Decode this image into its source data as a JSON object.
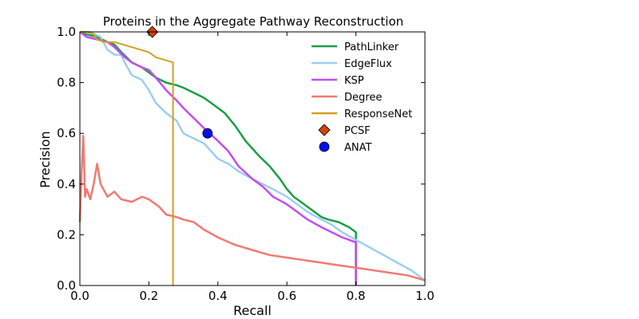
{
  "chart_data": {
    "type": "line",
    "title": "Proteins in the Aggregate Pathway Reconstruction",
    "xlabel": "Recall",
    "ylabel": "Precision",
    "xlim": [
      0.0,
      1.0
    ],
    "ylim": [
      0.0,
      1.0
    ],
    "xticks": [
      "0.0",
      "0.2",
      "0.4",
      "0.6",
      "0.8",
      "1.0"
    ],
    "yticks": [
      "0.0",
      "0.2",
      "0.4",
      "0.6",
      "0.8",
      "1.0"
    ],
    "grid": false,
    "legend_position": "top-right",
    "series": [
      {
        "name": "PathLinker",
        "color": "#1a9e45",
        "marker": "line",
        "x": [
          0.0,
          0.02,
          0.05,
          0.08,
          0.1,
          0.12,
          0.15,
          0.18,
          0.2,
          0.22,
          0.25,
          0.28,
          0.3,
          0.33,
          0.36,
          0.38,
          0.4,
          0.42,
          0.45,
          0.48,
          0.5,
          0.52,
          0.55,
          0.58,
          0.6,
          0.62,
          0.65,
          0.68,
          0.7,
          0.72,
          0.75,
          0.78,
          0.8,
          0.8
        ],
        "y": [
          1.0,
          0.99,
          0.98,
          0.96,
          0.95,
          0.92,
          0.88,
          0.86,
          0.84,
          0.82,
          0.8,
          0.79,
          0.78,
          0.76,
          0.74,
          0.72,
          0.7,
          0.68,
          0.63,
          0.57,
          0.54,
          0.51,
          0.47,
          0.42,
          0.38,
          0.35,
          0.32,
          0.29,
          0.27,
          0.26,
          0.25,
          0.23,
          0.21,
          0.0
        ]
      },
      {
        "name": "EdgeFlux",
        "color": "#9fcdf2",
        "marker": "line",
        "x": [
          0.0,
          0.03,
          0.06,
          0.08,
          0.1,
          0.12,
          0.13,
          0.15,
          0.18,
          0.2,
          0.22,
          0.25,
          0.28,
          0.3,
          0.33,
          0.36,
          0.38,
          0.4,
          0.43,
          0.46,
          0.5,
          0.53,
          0.56,
          0.6,
          0.63,
          0.66,
          0.7,
          0.73,
          0.76,
          0.8,
          0.84,
          0.88,
          0.92,
          0.96,
          1.0
        ],
        "y": [
          1.0,
          1.0,
          0.98,
          0.93,
          0.91,
          0.91,
          0.88,
          0.83,
          0.81,
          0.77,
          0.72,
          0.68,
          0.65,
          0.6,
          0.58,
          0.56,
          0.53,
          0.5,
          0.48,
          0.45,
          0.42,
          0.4,
          0.38,
          0.35,
          0.32,
          0.29,
          0.26,
          0.24,
          0.21,
          0.18,
          0.15,
          0.12,
          0.09,
          0.06,
          0.02
        ]
      },
      {
        "name": "KSP",
        "color": "#c44df2",
        "marker": "line",
        "x": [
          0.0,
          0.02,
          0.05,
          0.08,
          0.1,
          0.13,
          0.15,
          0.18,
          0.2,
          0.22,
          0.25,
          0.28,
          0.3,
          0.33,
          0.36,
          0.4,
          0.43,
          0.46,
          0.5,
          0.53,
          0.56,
          0.6,
          0.63,
          0.66,
          0.7,
          0.73,
          0.76,
          0.8,
          0.8
        ],
        "y": [
          1.0,
          0.98,
          0.97,
          0.96,
          0.94,
          0.9,
          0.88,
          0.86,
          0.85,
          0.82,
          0.77,
          0.73,
          0.7,
          0.66,
          0.62,
          0.57,
          0.53,
          0.47,
          0.42,
          0.39,
          0.35,
          0.32,
          0.29,
          0.26,
          0.23,
          0.21,
          0.19,
          0.17,
          0.0
        ]
      },
      {
        "name": "Degree",
        "color": "#f07a72",
        "marker": "line",
        "x": [
          0.0,
          0.005,
          0.01,
          0.015,
          0.02,
          0.03,
          0.04,
          0.05,
          0.06,
          0.08,
          0.1,
          0.12,
          0.15,
          0.18,
          0.2,
          0.23,
          0.25,
          0.28,
          0.3,
          0.33,
          0.36,
          0.4,
          0.45,
          0.5,
          0.55,
          0.6,
          0.65,
          0.7,
          0.75,
          0.8,
          0.85,
          0.9,
          0.95,
          1.0
        ],
        "y": [
          0.25,
          0.45,
          0.59,
          0.35,
          0.38,
          0.34,
          0.4,
          0.48,
          0.4,
          0.35,
          0.37,
          0.34,
          0.33,
          0.35,
          0.34,
          0.31,
          0.28,
          0.27,
          0.26,
          0.25,
          0.22,
          0.19,
          0.16,
          0.14,
          0.12,
          0.11,
          0.1,
          0.09,
          0.08,
          0.07,
          0.06,
          0.05,
          0.04,
          0.02
        ]
      },
      {
        "name": "ResponseNet",
        "color": "#d4a020",
        "marker": "line",
        "x": [
          0.0,
          0.02,
          0.04,
          0.05,
          0.07,
          0.1,
          0.15,
          0.2,
          0.22,
          0.27,
          0.27
        ],
        "y": [
          1.0,
          1.0,
          0.99,
          0.97,
          0.96,
          0.96,
          0.94,
          0.92,
          0.9,
          0.88,
          0.0
        ]
      },
      {
        "name": "PCSF",
        "color": "#d1420c",
        "marker": "diamond",
        "x": [
          0.21
        ],
        "y": [
          1.0
        ]
      },
      {
        "name": "ANAT",
        "color": "#0010ee",
        "marker": "circle",
        "x": [
          0.37
        ],
        "y": [
          0.6
        ]
      }
    ]
  }
}
